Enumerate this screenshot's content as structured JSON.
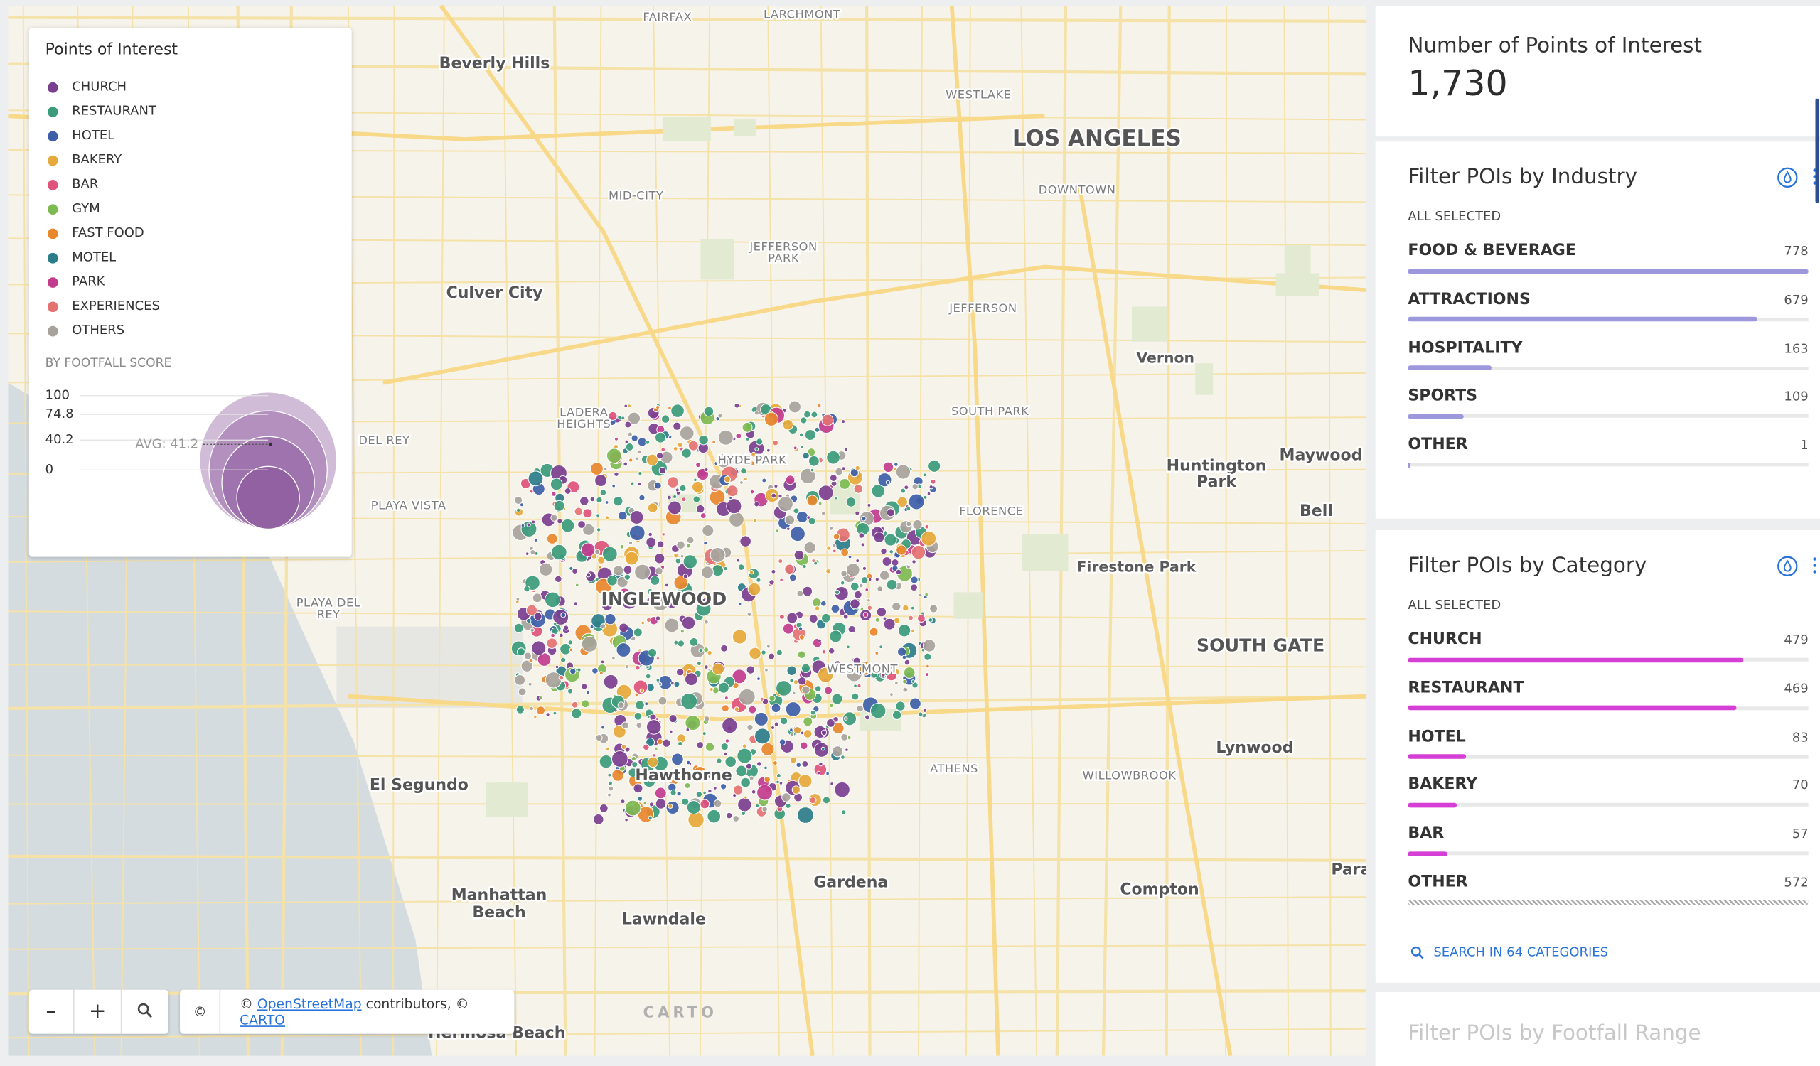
{
  "map": {
    "labels": [
      "FAIRFAX",
      "LARCHMONT",
      "Beverly Hills",
      "WESTLAKE",
      "LOS ANGELES",
      "DOWNTOWN",
      "MID-CITY",
      [
        "JEFFERSON",
        "PARK"
      ],
      "Culver City",
      "JEFFERSON",
      "Vernon",
      [
        "LADERA",
        "HEIGHTS"
      ],
      "SOUTH PARK",
      "DEL REY",
      "Maywood",
      [
        "Huntington",
        "Park"
      ],
      "HYDE PARK",
      "PLAYA VISTA",
      "FLORENCE",
      "Bell",
      "Firestone Park",
      "INGLEWOOD",
      [
        "PLAYA DEL",
        "REY"
      ],
      "SOUTH GATE",
      "WESTMONT",
      "Lynwood",
      "ATHENS",
      "Hawthorne",
      "WILLOWBROOK",
      "El Segundo",
      "Para",
      "Gardena",
      "Compton",
      [
        "Manhattan",
        "Beach"
      ],
      "Lawndale",
      "Hermosa Beach",
      "CARTO"
    ]
  },
  "legend": {
    "title": "Points of Interest",
    "items": [
      {
        "name": "CHURCH",
        "color": "#7b3f8f"
      },
      {
        "name": "RESTAURANT",
        "color": "#3b9b7b"
      },
      {
        "name": "HOTEL",
        "color": "#3d5fa8"
      },
      {
        "name": "BAKERY",
        "color": "#e6a93b"
      },
      {
        "name": "BAR",
        "color": "#e0537b"
      },
      {
        "name": "GYM",
        "color": "#7dbb51"
      },
      {
        "name": "FAST FOOD",
        "color": "#e8872b"
      },
      {
        "name": "MOTEL",
        "color": "#2b7d8a"
      },
      {
        "name": "PARK",
        "color": "#c23c8e"
      },
      {
        "name": "EXPERIENCES",
        "color": "#e47272"
      },
      {
        "name": "OTHERS",
        "color": "#a7a39b"
      }
    ],
    "size_title": "BY FOOTFALL SCORE",
    "size_ticks": [
      100,
      74.8,
      40.2,
      0
    ],
    "avg_label": "AVG: 41.2",
    "size_color": "#7b3f8f"
  },
  "controls": {
    "zoom_out": "–",
    "zoom_in": "+",
    "icon": "©",
    "text_before": "©",
    "link_osm": "OpenStreetMap",
    "text_middle": "contributors, ©",
    "link_carto": "CARTO"
  },
  "panel": {
    "count": {
      "title": "Number of Points of Interest",
      "value": "1,730"
    },
    "industry": {
      "title": "Filter POIs by Industry",
      "status": "ALL SELECTED",
      "color": "#9d97dc",
      "rows": [
        {
          "name": "FOOD & BEVERAGE",
          "value": 778
        },
        {
          "name": "ATTRACTIONS",
          "value": 679
        },
        {
          "name": "HOSPITALITY",
          "value": 163
        },
        {
          "name": "SPORTS",
          "value": 109
        },
        {
          "name": "OTHER",
          "value": 1
        }
      ]
    },
    "category": {
      "title": "Filter POIs by Category",
      "status": "ALL SELECTED",
      "color": "#d63fd6",
      "rows": [
        {
          "name": "CHURCH",
          "value": 479
        },
        {
          "name": "RESTAURANT",
          "value": 469
        },
        {
          "name": "HOTEL",
          "value": 83
        },
        {
          "name": "BAKERY",
          "value": 70
        },
        {
          "name": "BAR",
          "value": 57
        },
        {
          "name": "OTHER",
          "value": 572
        }
      ],
      "search": "SEARCH IN 64 CATEGORIES"
    },
    "footfall": {
      "title": "Filter POIs by Footfall Range"
    }
  }
}
